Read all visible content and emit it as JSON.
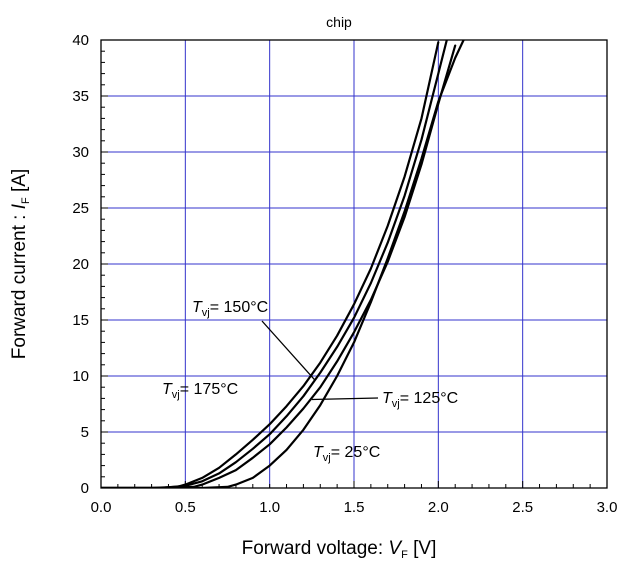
{
  "chart_data": {
    "type": "line",
    "title": "chip",
    "xlabel": {
      "prefix": "Forward voltage: ",
      "symbol": "V",
      "subscript": "F",
      "unit": " [V]"
    },
    "ylabel": {
      "prefix": "Forward current : ",
      "symbol": "I",
      "subscript": "F",
      "unit": " [A]"
    },
    "xlim": [
      0.0,
      3.0
    ],
    "ylim": [
      0,
      40
    ],
    "x_ticks": [
      "0.0",
      "0.5",
      "1.0",
      "1.5",
      "2.0",
      "2.5",
      "3.0"
    ],
    "y_ticks": [
      "0",
      "5",
      "10",
      "15",
      "20",
      "25",
      "30",
      "35",
      "40"
    ],
    "grid": true,
    "grid_color": "#3333cc",
    "line_color": "#000000",
    "series": [
      {
        "name": "T_vj= 175°C",
        "x": [
          0.0,
          0.3,
          0.45,
          0.5,
          0.6,
          0.7,
          0.8,
          0.9,
          1.0,
          1.1,
          1.2,
          1.3,
          1.4,
          1.5,
          1.6,
          1.7,
          1.8,
          1.9,
          2.0
        ],
        "y": [
          0,
          0,
          0.1,
          0.3,
          0.9,
          1.8,
          3.0,
          4.3,
          5.7,
          7.3,
          9.1,
          11.2,
          13.6,
          16.4,
          19.6,
          23.4,
          27.8,
          33.0,
          39.8
        ]
      },
      {
        "name": "T_vj= 150°C",
        "x": [
          0.0,
          0.35,
          0.5,
          0.6,
          0.7,
          0.8,
          0.9,
          1.0,
          1.1,
          1.2,
          1.3,
          1.4,
          1.5,
          1.6,
          1.7,
          1.8,
          1.9,
          2.0,
          2.05
        ],
        "y": [
          0,
          0,
          0.2,
          0.6,
          1.3,
          2.3,
          3.5,
          4.8,
          6.4,
          8.2,
          10.3,
          12.6,
          15.2,
          18.3,
          21.9,
          26.1,
          31.1,
          37.0,
          40.0
        ]
      },
      {
        "name": "T_vj= 125°C",
        "x": [
          0.0,
          0.4,
          0.55,
          0.6,
          0.7,
          0.8,
          0.9,
          1.0,
          1.1,
          1.2,
          1.3,
          1.4,
          1.5,
          1.6,
          1.7,
          1.8,
          1.9,
          2.0,
          2.1
        ],
        "y": [
          0,
          0,
          0.1,
          0.3,
          0.9,
          1.6,
          2.7,
          3.9,
          5.4,
          7.1,
          9.0,
          11.3,
          13.9,
          16.8,
          20.2,
          24.2,
          28.9,
          34.3,
          39.5
        ]
      },
      {
        "name": "T_vj= 25°C",
        "x": [
          0.0,
          0.6,
          0.75,
          0.8,
          0.9,
          1.0,
          1.1,
          1.2,
          1.3,
          1.4,
          1.5,
          1.6,
          1.7,
          1.8,
          1.9,
          2.0,
          2.1,
          2.15
        ],
        "y": [
          0,
          0,
          0.1,
          0.3,
          0.9,
          2.0,
          3.4,
          5.2,
          7.4,
          10.0,
          13.0,
          16.6,
          20.5,
          24.7,
          29.4,
          34.5,
          38.4,
          40.0
        ]
      }
    ],
    "annotations": [
      {
        "symbol": "T",
        "subscript": "vj",
        "text": "= 150°C",
        "series": "T_vj= 150°C",
        "pointer_to": [
          1.27,
          9.6
        ]
      },
      {
        "symbol": "T",
        "subscript": "vj",
        "text": "= 175°C",
        "series": "T_vj= 175°C"
      },
      {
        "symbol": "T",
        "subscript": "vj",
        "text": "= 125°C",
        "series": "T_vj= 125°C",
        "pointer_to": [
          1.25,
          7.9
        ]
      },
      {
        "symbol": "T",
        "subscript": "vj",
        "text": "= 25°C",
        "series": "T_vj= 25°C"
      }
    ]
  }
}
